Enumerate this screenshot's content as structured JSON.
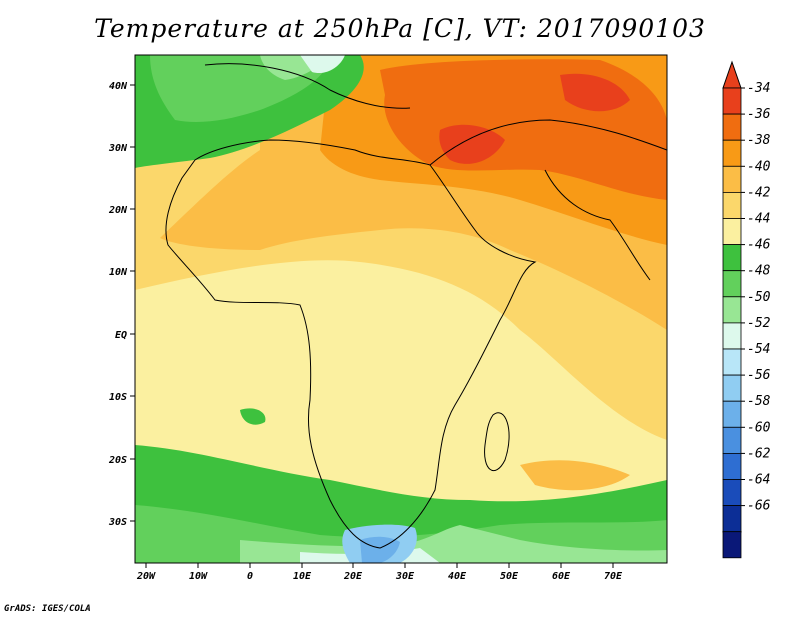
{
  "title": "Temperature at 250hPa [C], VT: 2017090103",
  "credit": "GrADS: IGES/COLA",
  "map": {
    "lat_labels": [
      "40N",
      "30N",
      "20N",
      "10N",
      "EQ",
      "10S",
      "20S",
      "30S"
    ],
    "lon_labels": [
      "20W",
      "10W",
      "0",
      "10E",
      "20E",
      "30E",
      "40E",
      "50E",
      "60E",
      "70E"
    ]
  },
  "colorbar": {
    "labels": [
      "-34",
      "-36",
      "-38",
      "-40",
      "-42",
      "-44",
      "-46",
      "-48",
      "-50",
      "-52",
      "-54",
      "-56",
      "-58",
      "-60",
      "-62",
      "-64",
      "-66"
    ],
    "colors": [
      "#e8401c",
      "#f06d10",
      "#f89a16",
      "#fbbd46",
      "#fbd76b",
      "#fbf0a0",
      "#3ec13e",
      "#62d05c",
      "#98e694",
      "#ddf9ec",
      "#b8e6f8",
      "#90cdf2",
      "#6cb0ea",
      "#4a90e0",
      "#2e6ed2",
      "#1a4cba",
      "#0c2e96",
      "#0a1878"
    ],
    "top_color": "#e8401c",
    "bottom_color": "#d0d0f8"
  }
}
